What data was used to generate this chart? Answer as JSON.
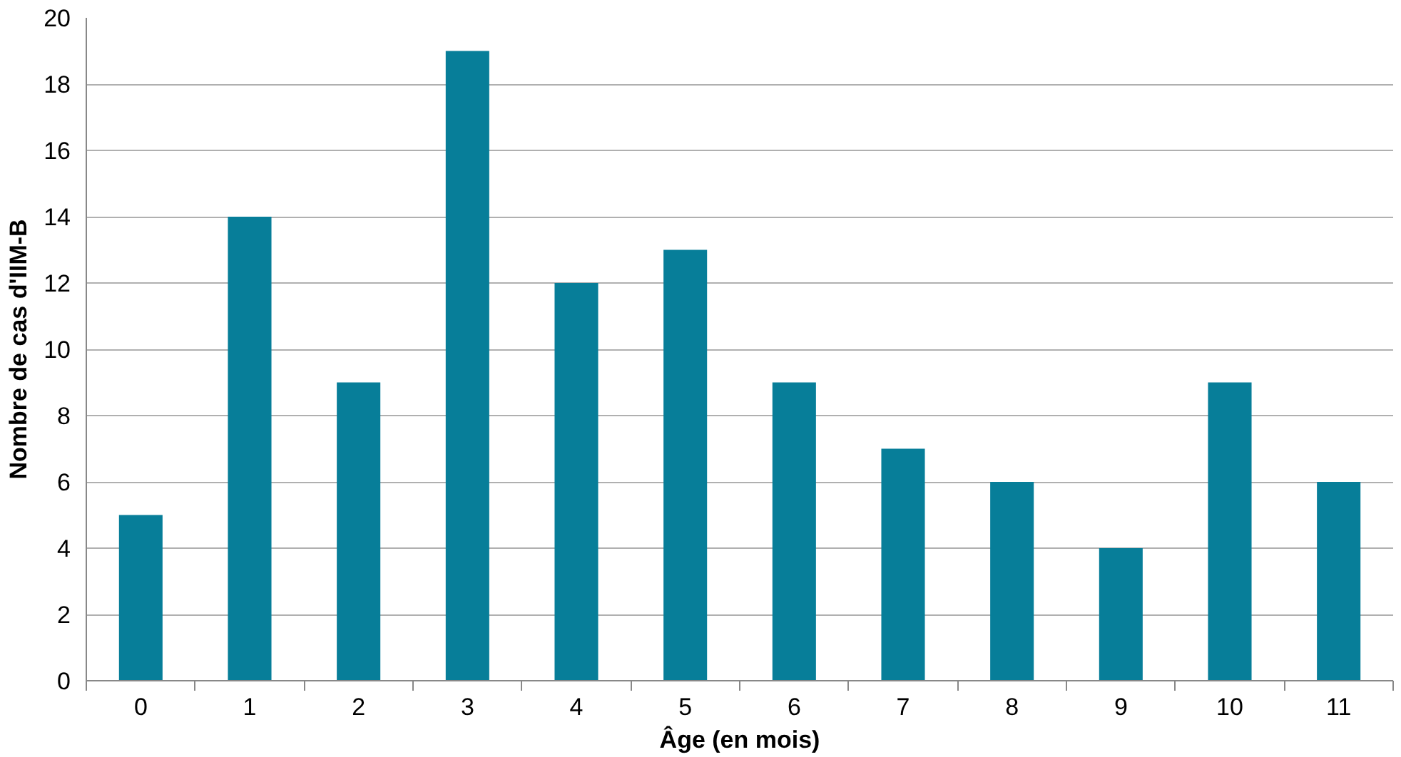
{
  "chart_data": {
    "type": "bar",
    "xlabel": "Âge (en mois)",
    "ylabel": "Nombre de cas d'IIM-B",
    "categories": [
      "0",
      "1",
      "2",
      "3",
      "4",
      "5",
      "6",
      "7",
      "8",
      "9",
      "10",
      "11"
    ],
    "values": [
      5,
      14,
      9,
      19,
      12,
      13,
      9,
      7,
      6,
      4,
      9,
      6
    ],
    "color": "#077e99",
    "ylim": [
      0,
      20
    ],
    "yticks": [
      0,
      2,
      4,
      6,
      8,
      10,
      12,
      14,
      16,
      18,
      20
    ],
    "grid": "y"
  }
}
